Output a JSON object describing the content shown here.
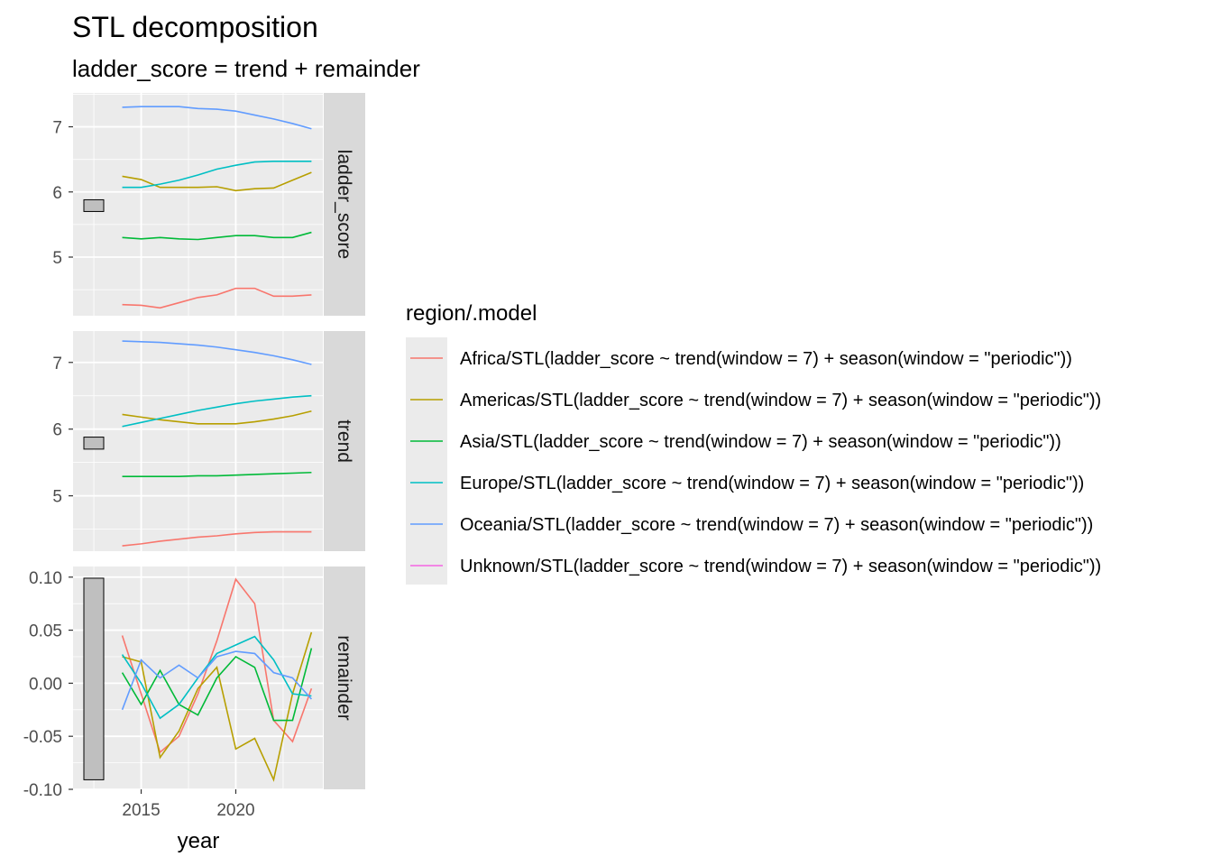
{
  "chart_data": {
    "type": "line",
    "title": "STL decomposition",
    "subtitle": "ladder_score = trend + remainder",
    "xlabel": "year",
    "x": [
      2014,
      2015,
      2016,
      2017,
      2018,
      2019,
      2020,
      2021,
      2022,
      2023,
      2024
    ],
    "xlim": [
      2011.4,
      2024.6
    ],
    "x_ticks": [
      2015,
      2020
    ],
    "x_tick_labels": [
      "2015",
      "2020"
    ],
    "grid": true,
    "legend": {
      "title": "region/.model",
      "position": "right",
      "entries": [
        "Africa/STL(ladder_score ~ trend(window = 7) + season(window = \"periodic\"))",
        "Americas/STL(ladder_score ~ trend(window = 7) + season(window = \"periodic\"))",
        "Asia/STL(ladder_score ~ trend(window = 7) + season(window = \"periodic\"))",
        "Europe/STL(ladder_score ~ trend(window = 7) + season(window = \"periodic\"))",
        "Oceania/STL(ladder_score ~ trend(window = 7) + season(window = \"periodic\"))",
        "Unknown/STL(ladder_score ~ trend(window = 7) + season(window = \"periodic\"))"
      ]
    },
    "colors": [
      "#F8766D",
      "#B79F00",
      "#00BA38",
      "#00BFC4",
      "#619CFF",
      "#F564E3"
    ],
    "panels": [
      {
        "name": "ladder_score",
        "ylim": [
          4.1,
          7.52
        ],
        "y_ticks": [
          5,
          6,
          7
        ],
        "y_tick_labels": [
          "5",
          "6",
          "7"
        ],
        "scale_bar": [
          5.7,
          5.88
        ],
        "series": [
          {
            "values": [
              4.27,
              4.26,
              4.22,
              4.3,
              4.38,
              4.42,
              4.52,
              4.52,
              4.4,
              4.4,
              4.42
            ]
          },
          {
            "values": [
              6.24,
              6.19,
              6.07,
              6.07,
              6.07,
              6.08,
              6.02,
              6.05,
              6.06,
              6.18,
              6.3
            ]
          },
          {
            "values": [
              5.3,
              5.28,
              5.3,
              5.28,
              5.27,
              5.3,
              5.33,
              5.33,
              5.3,
              5.3,
              5.38
            ]
          },
          {
            "values": [
              6.07,
              6.07,
              6.12,
              6.18,
              6.26,
              6.35,
              6.41,
              6.46,
              6.47,
              6.47,
              6.47
            ]
          },
          {
            "values": [
              7.3,
              7.31,
              7.31,
              7.31,
              7.28,
              7.27,
              7.24,
              7.18,
              7.12,
              7.05,
              6.97
            ]
          }
        ]
      },
      {
        "name": "trend",
        "ylim": [
          4.17,
          7.47
        ],
        "y_ticks": [
          5,
          6,
          7
        ],
        "y_tick_labels": [
          "5",
          "6",
          "7"
        ],
        "scale_bar": [
          5.7,
          5.88
        ],
        "series": [
          {
            "values": [
              4.25,
              4.28,
              4.32,
              4.35,
              4.38,
              4.4,
              4.43,
              4.45,
              4.46,
              4.46,
              4.46
            ]
          },
          {
            "values": [
              6.22,
              6.18,
              6.14,
              6.11,
              6.08,
              6.08,
              6.08,
              6.11,
              6.15,
              6.2,
              6.27
            ]
          },
          {
            "values": [
              5.29,
              5.29,
              5.29,
              5.29,
              5.3,
              5.3,
              5.31,
              5.32,
              5.33,
              5.34,
              5.35
            ]
          },
          {
            "values": [
              6.04,
              6.1,
              6.16,
              6.22,
              6.28,
              6.33,
              6.38,
              6.42,
              6.45,
              6.48,
              6.5
            ]
          },
          {
            "values": [
              7.32,
              7.31,
              7.3,
              7.28,
              7.26,
              7.23,
              7.19,
              7.15,
              7.1,
              7.04,
              6.97
            ]
          }
        ]
      },
      {
        "name": "remainder",
        "ylim": [
          -0.1,
          0.11
        ],
        "y_ticks": [
          -0.1,
          -0.05,
          0,
          0.05,
          0.1
        ],
        "y_tick_labels": [
          "-0.10",
          "-0.05",
          "0.00",
          "0.05",
          "0.10"
        ],
        "scale_bar": [
          -0.091,
          0.099
        ],
        "series": [
          {
            "values": [
              0.045,
              -0.01,
              -0.065,
              -0.05,
              -0.01,
              0.04,
              0.098,
              0.075,
              -0.035,
              -0.055,
              -0.005
            ]
          },
          {
            "values": [
              0.025,
              0.02,
              -0.07,
              -0.045,
              -0.005,
              0.015,
              -0.062,
              -0.052,
              -0.091,
              -0.01,
              0.048
            ]
          },
          {
            "values": [
              0.01,
              -0.02,
              0.012,
              -0.02,
              -0.03,
              0.005,
              0.025,
              0.015,
              -0.035,
              -0.035,
              0.033
            ]
          },
          {
            "values": [
              0.027,
              0.0,
              -0.033,
              -0.02,
              0.005,
              0.028,
              0.036,
              0.044,
              0.022,
              -0.01,
              -0.012
            ]
          },
          {
            "values": [
              -0.025,
              0.022,
              0.005,
              0.017,
              0.005,
              0.025,
              0.03,
              0.028,
              0.01,
              0.005,
              -0.015
            ]
          }
        ]
      }
    ]
  }
}
